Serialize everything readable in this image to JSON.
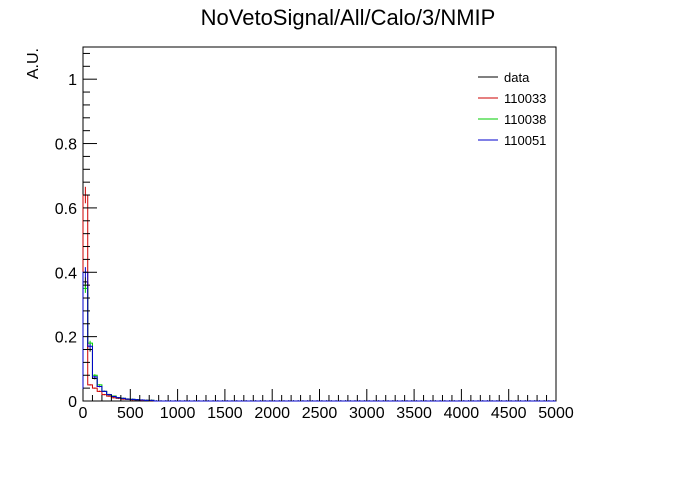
{
  "chart_data": {
    "type": "histogram",
    "title": "NoVetoSignal/All/Calo/3/NMIP",
    "xlabel": "",
    "ylabel": "A.U.",
    "xlim": [
      0,
      5000
    ],
    "ylim": [
      0,
      1.1
    ],
    "bin_width": 50,
    "x_ticks": [
      "0",
      "500",
      "1000",
      "1500",
      "2000",
      "2500",
      "3000",
      "3500",
      "4000",
      "4500",
      "5000"
    ],
    "x_tick_values": [
      0,
      500,
      1000,
      1500,
      2000,
      2500,
      3000,
      3500,
      4000,
      4500,
      5000
    ],
    "y_ticks": [
      "0",
      "0.2",
      "0.4",
      "0.6",
      "0.8",
      "1"
    ],
    "y_tick_values": [
      0,
      0.2,
      0.4,
      0.6,
      0.8,
      1
    ],
    "legend_position": "top-right",
    "series": [
      {
        "name": "data",
        "color": "#000000",
        "values": [
          0.37,
          0.16,
          0.07,
          0.045,
          0.03,
          0.02,
          0.015,
          0.01,
          0.008,
          0.006,
          0.005,
          0.004,
          0.003,
          0.002,
          0.002
        ]
      },
      {
        "name": "110033",
        "color": "#cc0000",
        "values": [
          0.64,
          0.05,
          0.04,
          0.03,
          0.02,
          0.015,
          0.01,
          0.008,
          0.006,
          0.005,
          0.004,
          0.003,
          0.002,
          0.002,
          0.001
        ]
      },
      {
        "name": "110038",
        "color": "#00cc00",
        "values": [
          0.35,
          0.18,
          0.08,
          0.05,
          0.03,
          0.02,
          0.015,
          0.01,
          0.008,
          0.006,
          0.005,
          0.004,
          0.003,
          0.002,
          0.002
        ]
      },
      {
        "name": "110051",
        "color": "#0000cc",
        "values": [
          0.4,
          0.17,
          0.075,
          0.045,
          0.03,
          0.02,
          0.014,
          0.01,
          0.008,
          0.006,
          0.005,
          0.004,
          0.003,
          0.002,
          0.002
        ]
      }
    ]
  }
}
